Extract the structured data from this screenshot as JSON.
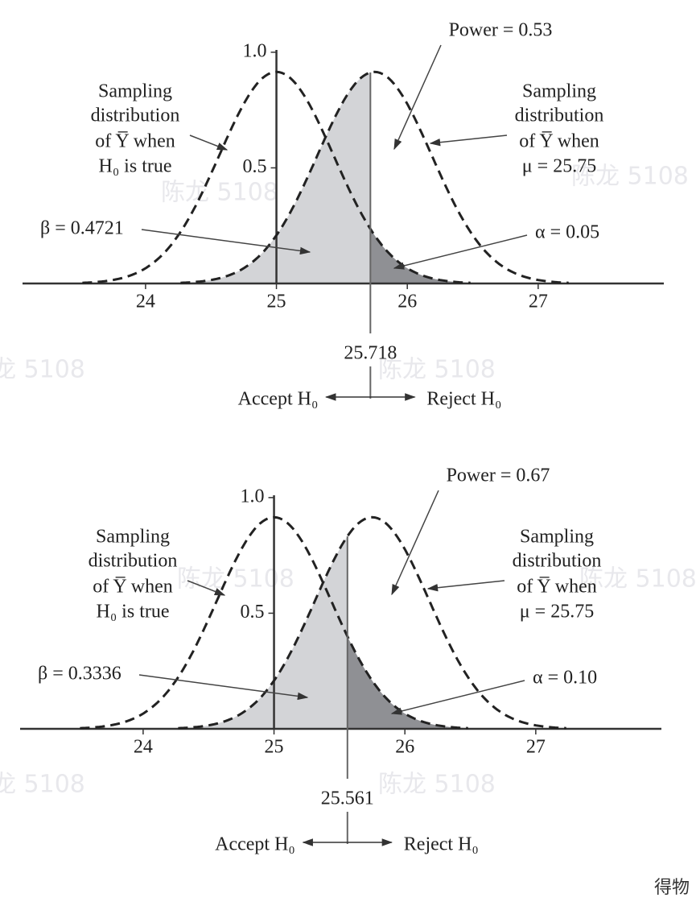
{
  "chart_data": [
    {
      "type": "hypothesis-test",
      "distributions": [
        {
          "mean": 25,
          "sd": 0.436
        },
        {
          "mean": 25.75,
          "sd": 0.436
        }
      ],
      "cutoff": 25.718,
      "xlim": [
        23.06,
        27.96
      ],
      "ylim": [
        0,
        1.01
      ],
      "xticks": [
        24,
        25,
        26,
        27
      ],
      "yticks": [
        0.5,
        {
          "value": 1,
          "label": "1.0"
        }
      ],
      "left_label": [
        "Sampling",
        "distribution",
        "of Y̅ when",
        "H₀ is true"
      ],
      "right_label": [
        "Sampling",
        "distribution",
        "of Y̅ when",
        "μ = 25.75"
      ],
      "power": "Power = 0.53",
      "beta": "β = 0.4721",
      "alpha": "α = 0.05",
      "accept": "Accept H₀",
      "reject": "Reject H₀"
    },
    {
      "type": "hypothesis-test",
      "distributions": [
        {
          "mean": 25,
          "sd": 0.436
        },
        {
          "mean": 25.75,
          "sd": 0.436
        }
      ],
      "cutoff": 25.561,
      "xlim": [
        23.06,
        27.96
      ],
      "ylim": [
        0,
        1.01
      ],
      "xticks": [
        24,
        25,
        26,
        27
      ],
      "yticks": [
        0.5,
        {
          "value": 1,
          "label": "1.0"
        }
      ],
      "left_label": [
        "Sampling",
        "distribution",
        "of Y̅ when",
        "H₀ is true"
      ],
      "right_label": [
        "Sampling",
        "distribution",
        "of Y̅ when",
        "μ = 25.75"
      ],
      "power": "Power = 0.67",
      "beta": "β = 0.3336",
      "alpha": "α = 0.10",
      "accept": "Accept H₀",
      "reject": "Reject H₀"
    }
  ],
  "watermark": "陈龙 5108",
  "logo": "得物"
}
